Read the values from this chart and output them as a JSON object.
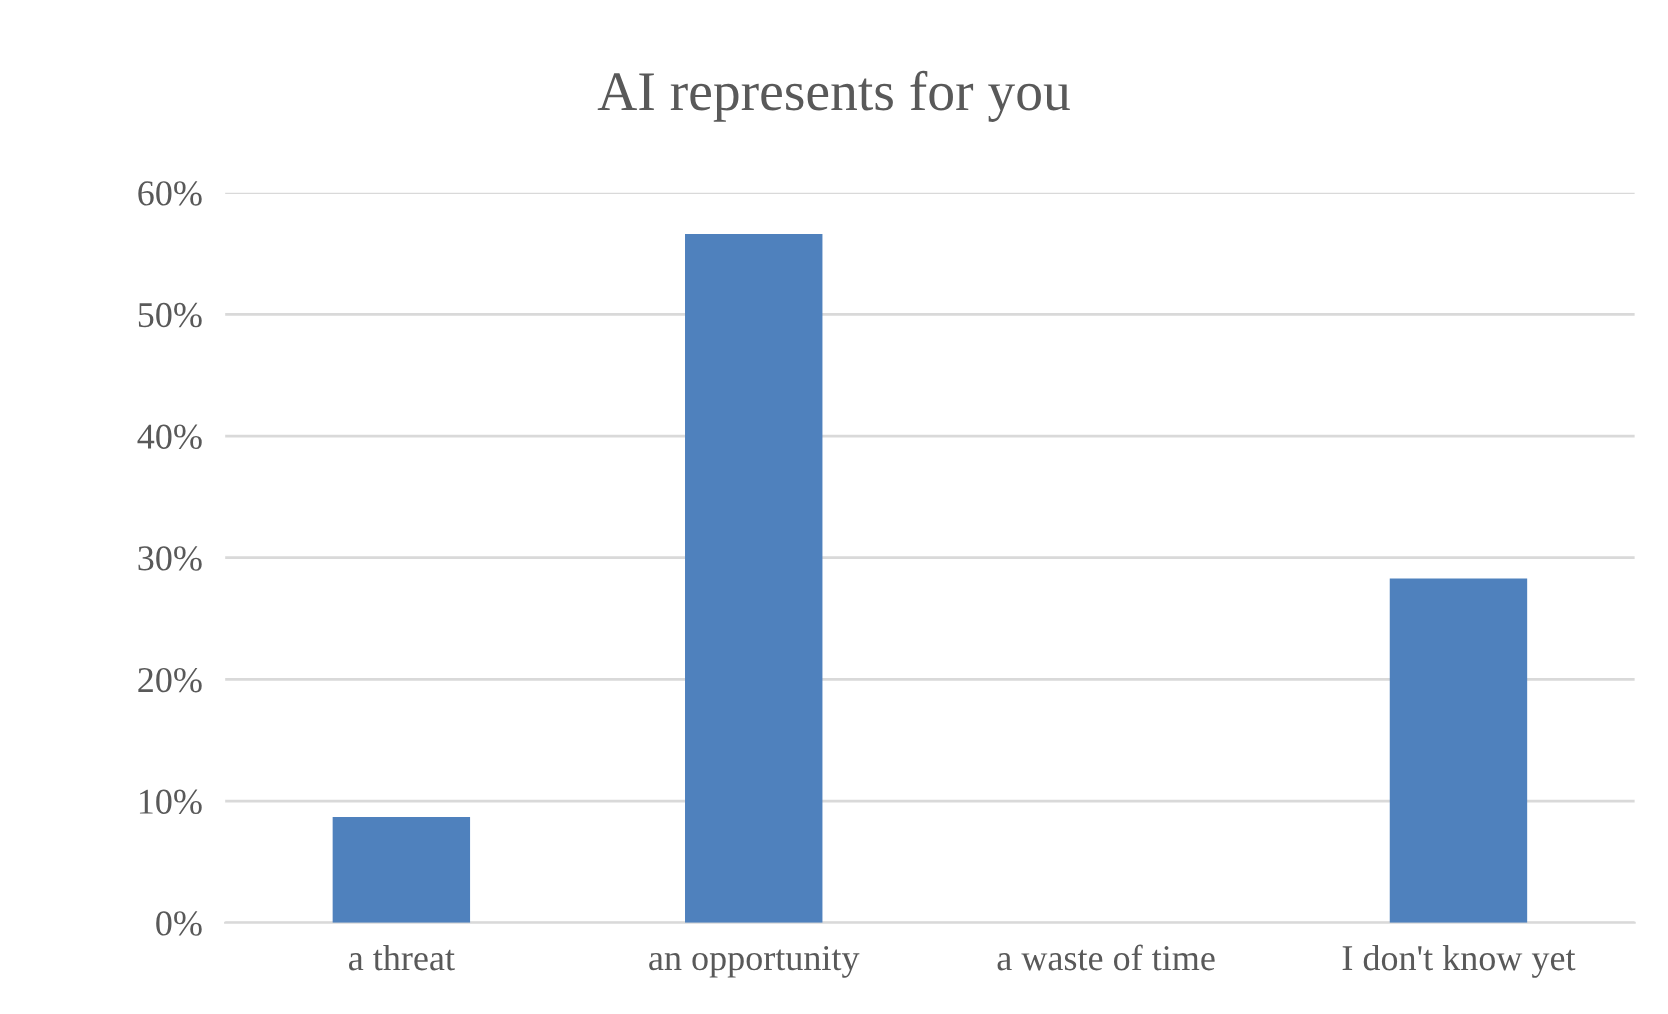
{
  "chart_data": {
    "type": "bar",
    "title": "AI represents for you",
    "categories": [
      "a threat",
      "an opportunity",
      "a waste of time",
      "I don't know yet"
    ],
    "values": [
      8.7,
      56.6,
      0,
      28.3
    ],
    "color": "#4f81bd",
    "ylim": [
      0,
      60
    ],
    "yticks": [
      {
        "value": 0,
        "label": "0%"
      },
      {
        "value": 10,
        "label": "10%"
      },
      {
        "value": 20,
        "label": "20%"
      },
      {
        "value": 30,
        "label": "30%"
      },
      {
        "value": 40,
        "label": "40%"
      },
      {
        "value": 50,
        "label": "50%"
      },
      {
        "value": 60,
        "label": "60%"
      }
    ],
    "grid": "y"
  }
}
